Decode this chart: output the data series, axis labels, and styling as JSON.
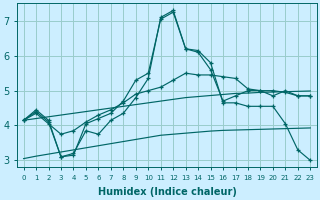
{
  "x": [
    0,
    1,
    2,
    3,
    4,
    5,
    6,
    7,
    8,
    9,
    10,
    11,
    12,
    13,
    14,
    15,
    16,
    17,
    18,
    19,
    20,
    21,
    22,
    23
  ],
  "line_main": [
    4.15,
    4.45,
    4.15,
    3.1,
    3.2,
    3.85,
    3.75,
    4.15,
    4.35,
    4.8,
    5.35,
    7.1,
    7.3,
    6.2,
    6.15,
    5.8,
    4.65,
    4.65,
    4.55,
    4.55,
    4.55,
    4.05,
    3.3,
    3.0
  ],
  "line_mid": [
    4.15,
    4.4,
    4.1,
    3.1,
    3.15,
    4.05,
    4.2,
    4.35,
    4.7,
    5.3,
    5.5,
    7.05,
    7.25,
    6.2,
    6.1,
    5.6,
    4.7,
    4.85,
    5.0,
    5.0,
    4.85,
    5.0,
    4.85,
    4.85
  ],
  "line_top": [
    4.15,
    4.35,
    4.05,
    3.75,
    3.85,
    4.1,
    4.3,
    4.45,
    4.65,
    4.9,
    5.0,
    5.1,
    5.3,
    5.5,
    5.45,
    5.45,
    5.4,
    5.35,
    5.05,
    5.0,
    5.0,
    4.95,
    4.85,
    4.85
  ],
  "line_upper_smooth": [
    4.15,
    4.2,
    4.25,
    4.3,
    4.35,
    4.4,
    4.45,
    4.5,
    4.55,
    4.6,
    4.65,
    4.7,
    4.75,
    4.8,
    4.83,
    4.86,
    4.89,
    4.92,
    4.93,
    4.95,
    4.96,
    4.97,
    4.98,
    4.99
  ],
  "line_lower_smooth": [
    3.05,
    3.12,
    3.18,
    3.24,
    3.3,
    3.36,
    3.42,
    3.48,
    3.54,
    3.6,
    3.66,
    3.72,
    3.75,
    3.78,
    3.81,
    3.84,
    3.86,
    3.87,
    3.88,
    3.89,
    3.9,
    3.91,
    3.92,
    3.93
  ],
  "color": "#006666",
  "bg_color": "#cceeff",
  "grid_color": "#99cccc",
  "xlabel": "Humidex (Indice chaleur)",
  "xlim": [
    -0.5,
    23.5
  ],
  "ylim": [
    2.8,
    7.5
  ],
  "yticks": [
    3,
    4,
    5,
    6,
    7
  ]
}
